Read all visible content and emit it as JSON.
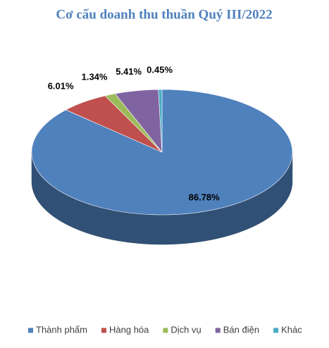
{
  "chart_data": {
    "type": "pie",
    "title": "Cơ cấu doanh thu thuần Quý III/2022",
    "categories": [
      "Thành phẩm",
      "Hàng hóa",
      "Dịch vụ",
      "Bán điện",
      "Khác"
    ],
    "values": [
      86.78,
      6.01,
      1.34,
      5.41,
      0.45
    ],
    "value_labels": [
      "86.78%",
      "6.01%",
      "1.34%",
      "5.41%",
      "0.45%"
    ],
    "colors": [
      "#4f81bd",
      "#c0504d",
      "#9bbb59",
      "#8064a2",
      "#4bacc6"
    ],
    "legend": "bottom"
  }
}
